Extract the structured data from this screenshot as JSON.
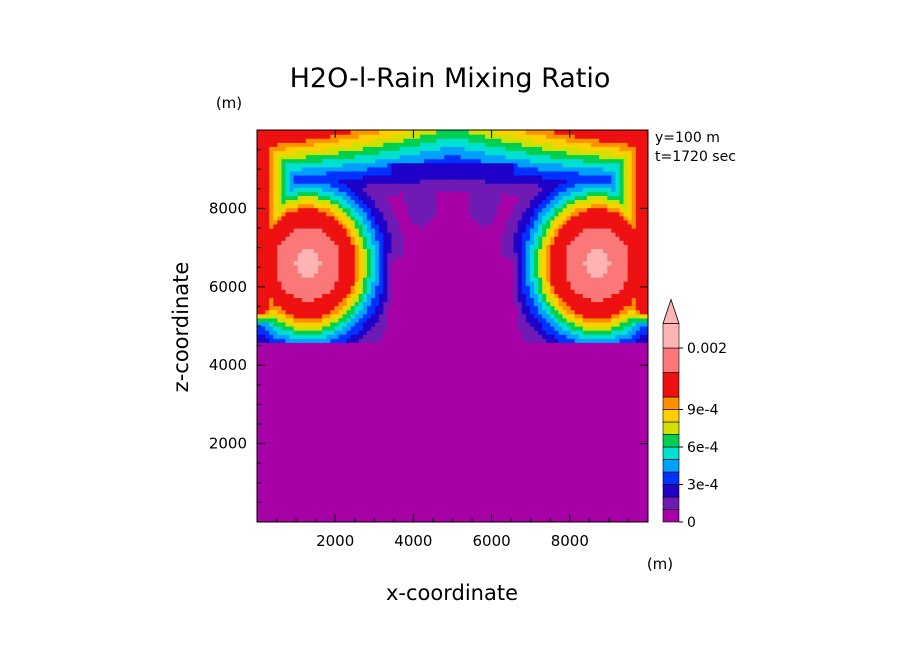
{
  "chart_data": {
    "type": "heatmap",
    "title": "H2O-l-Rain Mixing Ratio",
    "xlabel": "x-coordinate",
    "ylabel": "z-coordinate",
    "x_unit": "(m)",
    "y_unit": "(m)",
    "xlim": [
      0,
      10000
    ],
    "ylim": [
      0,
      10000
    ],
    "xticks": [
      2000,
      4000,
      6000,
      8000
    ],
    "yticks": [
      2000,
      4000,
      6000,
      8000
    ],
    "annotations": [
      "y=100 m",
      "t=1720 sec"
    ],
    "colorbar": {
      "levels": [
        0,
        0.0001,
        0.0002,
        0.0003,
        0.0004,
        0.0005,
        0.0006,
        0.0007,
        0.0008,
        0.0009,
        0.001,
        0.0015,
        0.002
      ],
      "colors": [
        "#a600a6",
        "#6e1ab4",
        "#1e00c8",
        "#0032ff",
        "#00a0ff",
        "#00e0d0",
        "#00d050",
        "#d0e000",
        "#ffd000",
        "#ff9000",
        "#ee1111",
        "#fa7878",
        "#ffb4b4"
      ],
      "tick_labels": [
        "0",
        "3e-4",
        "6e-4",
        "9e-4",
        "0.002"
      ],
      "extend": "max"
    },
    "fields": {
      "description_free": true,
      "background_value": 0,
      "cores": [
        {
          "x": 1300,
          "z": 6600,
          "peak": 0.0021
        },
        {
          "x": 8700,
          "z": 6600,
          "peak": 0.0021
        }
      ],
      "updraft_lobes": [
        {
          "x": 4200,
          "z": 8300,
          "peak": 0.0002
        },
        {
          "x": 5800,
          "z": 8300,
          "peak": 0.0002
        }
      ],
      "top_band": {
        "z_min": 8000,
        "z_max": 10000,
        "peak": 0.0012
      }
    }
  }
}
